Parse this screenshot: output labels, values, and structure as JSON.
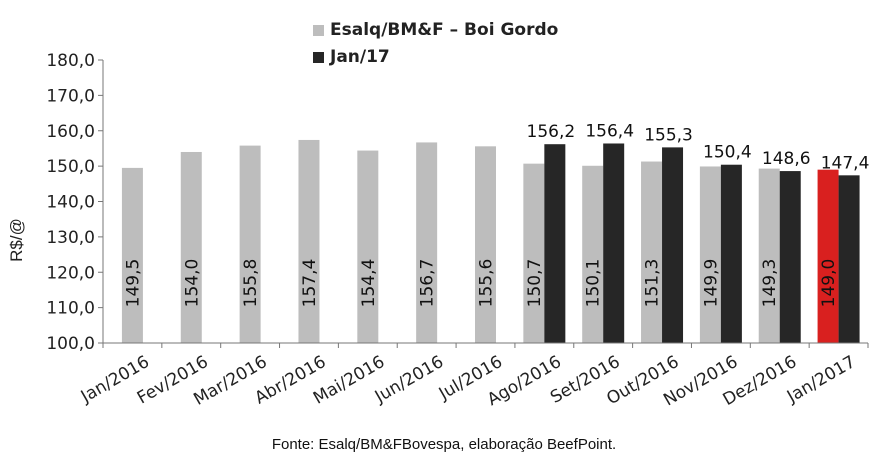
{
  "chart_data": {
    "type": "bar",
    "ylabel": "R$/@",
    "ylim": [
      100,
      180
    ],
    "yticks": [
      100,
      110,
      120,
      130,
      140,
      150,
      160,
      170,
      180
    ],
    "ytick_labels": [
      "100,0",
      "110,0",
      "120,0",
      "130,0",
      "140,0",
      "150,0",
      "160,0",
      "170,0",
      "180,0"
    ],
    "categories": [
      "Jan/2016",
      "Fev/2016",
      "Mar/2016",
      "Abr/2016",
      "Mai/2016",
      "Jun/2016",
      "Jul/2016",
      "Ago/2016",
      "Set/2016",
      "Out/2016",
      "Nov/2016",
      "Dez/2016",
      "Jan/2017"
    ],
    "series": [
      {
        "name": "Esalq/BM&F – Boi Gordo",
        "color": "#bdbdbd",
        "values": [
          149.5,
          154.0,
          155.8,
          157.4,
          154.4,
          156.7,
          155.6,
          150.7,
          150.1,
          151.3,
          149.9,
          149.3,
          149.0
        ],
        "labels": [
          "149,5",
          "154,0",
          "155,8",
          "157,4",
          "154,4",
          "156,7",
          "155,6",
          "150,7",
          "150,1",
          "151,3",
          "149,9",
          "149,3",
          "149,0"
        ]
      },
      {
        "name": "Jan/17",
        "color": "#262626",
        "values": [
          null,
          null,
          null,
          null,
          null,
          null,
          null,
          156.2,
          156.4,
          155.3,
          150.4,
          148.6,
          147.4
        ],
        "labels": [
          null,
          null,
          null,
          null,
          null,
          null,
          null,
          "156,2",
          "156,4",
          "155,3",
          "150,4",
          "148,6",
          "147,4"
        ]
      }
    ],
    "highlight": {
      "series": 0,
      "index": 12,
      "color": "#d9201f"
    },
    "legend_position": "top-center",
    "grid": false
  },
  "source_note": "Fonte: Esalq/BM&FBovespa, elaboração BeefPoint."
}
